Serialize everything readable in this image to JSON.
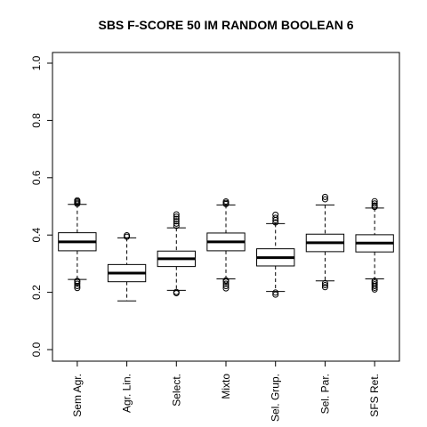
{
  "chart_data": {
    "type": "boxplot",
    "title": "SBS F-SCORE 50 IM RANDOM BOOLEAN 6",
    "xlabel": "",
    "ylabel": "",
    "ylim": [
      0.0,
      1.0
    ],
    "yticks": [
      0.0,
      0.2,
      0.4,
      0.6,
      0.8,
      1.0
    ],
    "ytick_labels": [
      "0.0",
      "0.2",
      "0.4",
      "0.6",
      "0.8",
      "1.0"
    ],
    "categories": [
      "Sem Agr.",
      "Agr. Lin.",
      "Select.",
      "Mixto",
      "Sel. Grup.",
      "Sel. Par.",
      "SFS Ret."
    ],
    "boxes": [
      {
        "whisker_low": 0.245,
        "q1": 0.345,
        "median": 0.376,
        "q3": 0.408,
        "whisker_high": 0.507,
        "outliers": [
          0.215,
          0.222,
          0.23,
          0.236,
          0.24,
          0.509,
          0.513,
          0.517,
          0.521
        ]
      },
      {
        "whisker_low": 0.17,
        "q1": 0.237,
        "median": 0.267,
        "q3": 0.297,
        "whisker_high": 0.39,
        "outliers": [
          0.394,
          0.399
        ]
      },
      {
        "whisker_low": 0.207,
        "q1": 0.29,
        "median": 0.317,
        "q3": 0.344,
        "whisker_high": 0.425,
        "outliers": [
          0.197,
          0.201,
          0.432,
          0.44,
          0.448,
          0.456,
          0.464,
          0.472
        ]
      },
      {
        "whisker_low": 0.247,
        "q1": 0.345,
        "median": 0.376,
        "q3": 0.407,
        "whisker_high": 0.505,
        "outliers": [
          0.214,
          0.222,
          0.23,
          0.237,
          0.242,
          0.508,
          0.512,
          0.517
        ]
      },
      {
        "whisker_low": 0.203,
        "q1": 0.292,
        "median": 0.321,
        "q3": 0.352,
        "whisker_high": 0.44,
        "outliers": [
          0.192,
          0.199,
          0.444,
          0.452,
          0.46,
          0.471
        ]
      },
      {
        "whisker_low": 0.24,
        "q1": 0.342,
        "median": 0.373,
        "q3": 0.403,
        "whisker_high": 0.505,
        "outliers": [
          0.218,
          0.225,
          0.232,
          0.525,
          0.533
        ]
      },
      {
        "whisker_low": 0.247,
        "q1": 0.341,
        "median": 0.372,
        "q3": 0.401,
        "whisker_high": 0.494,
        "outliers": [
          0.21,
          0.216,
          0.222,
          0.228,
          0.234,
          0.24,
          0.498,
          0.503,
          0.51,
          0.518
        ]
      }
    ]
  }
}
